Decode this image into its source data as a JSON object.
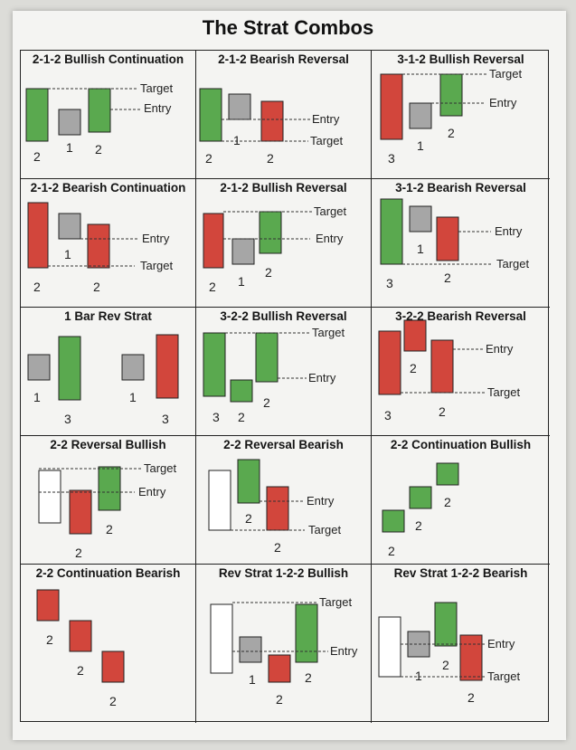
{
  "title": "The Strat Combos",
  "colors": {
    "green": "#5aa94f",
    "red": "#d2463c",
    "grey": "#a6a6a6",
    "outline": "#ffffff"
  },
  "cells": [
    {
      "title": "2-1-2 Bullish Continuation",
      "labels": [
        "Target",
        "Entry"
      ],
      "numbers": [
        "2",
        "1",
        "2"
      ]
    },
    {
      "title": "2-1-2 Bearish Reversal",
      "labels": [
        "Entry",
        "Target"
      ],
      "numbers": [
        "2",
        "1",
        "2"
      ]
    },
    {
      "title": "3-1-2 Bullish Reversal",
      "labels": [
        "Target",
        "Entry"
      ],
      "numbers": [
        "3",
        "1",
        "2"
      ]
    },
    {
      "title": "2-1-2 Bearish Continuation",
      "labels": [
        "Entry",
        "Target"
      ],
      "numbers": [
        "2",
        "1",
        "2"
      ]
    },
    {
      "title": "2-1-2 Bullish Reversal",
      "labels": [
        "Target",
        "Entry"
      ],
      "numbers": [
        "2",
        "1",
        "2"
      ]
    },
    {
      "title": "3-1-2 Bearish Reversal",
      "labels": [
        "Entry",
        "Target"
      ],
      "numbers": [
        "3",
        "1",
        "2"
      ]
    },
    {
      "title": "1 Bar Rev Strat",
      "labels": [],
      "numbers": [
        "1",
        "3",
        "1",
        "3"
      ]
    },
    {
      "title": "3-2-2 Bullish Reversal",
      "labels": [
        "Target",
        "Entry"
      ],
      "numbers": [
        "3",
        "2",
        "2"
      ]
    },
    {
      "title": "3-2-2 Bearish Reversal",
      "labels": [
        "Entry",
        "Target"
      ],
      "numbers": [
        "3",
        "2",
        "2"
      ]
    },
    {
      "title": "2-2 Reversal Bullish",
      "labels": [
        "Target",
        "Entry"
      ],
      "numbers": [
        "2",
        "2"
      ]
    },
    {
      "title": "2-2 Reversal Bearish",
      "labels": [
        "Entry",
        "Target"
      ],
      "numbers": [
        "2",
        "2"
      ]
    },
    {
      "title": "2-2 Continuation Bullish",
      "labels": [],
      "numbers": [
        "2",
        "2",
        "2"
      ]
    },
    {
      "title": "2-2 Continuation Bearish",
      "labels": [],
      "numbers": [
        "2",
        "2",
        "2"
      ]
    },
    {
      "title": "Rev Strat 1-2-2 Bullish",
      "labels": [
        "Target",
        "Entry"
      ],
      "numbers": [
        "1",
        "2",
        "2"
      ]
    },
    {
      "title": "Rev Strat 1-2-2 Bearish",
      "labels": [
        "Entry",
        "Target"
      ],
      "numbers": [
        "1",
        "2",
        "2"
      ]
    }
  ]
}
